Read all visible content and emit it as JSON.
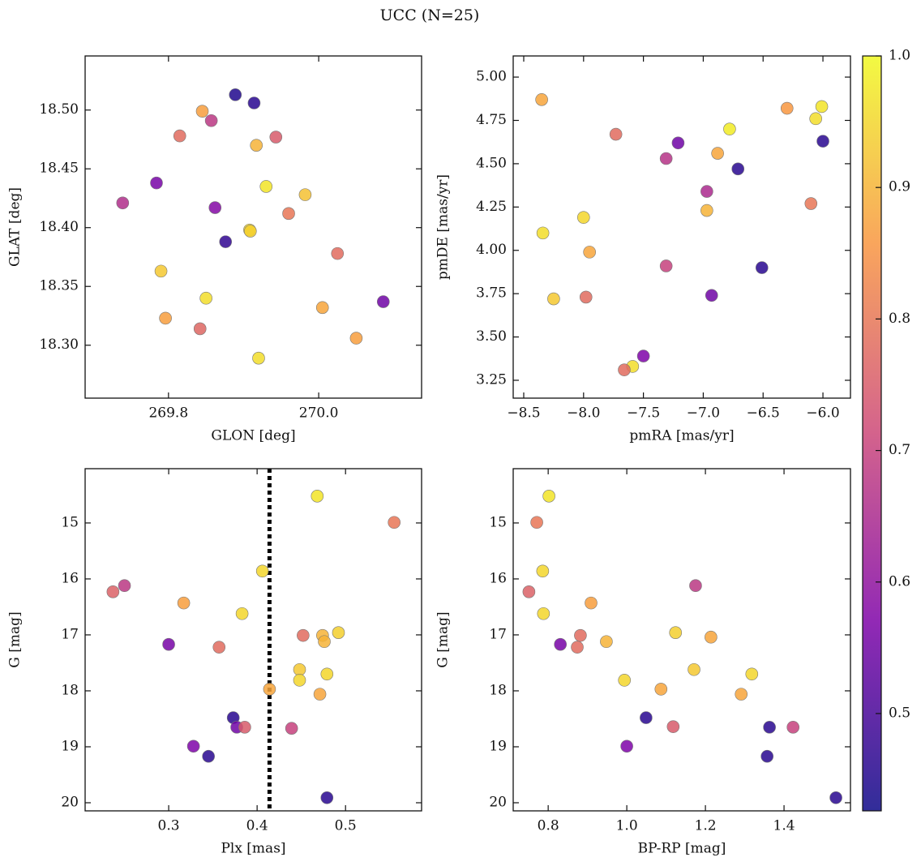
{
  "title": "UCC (N=25)",
  "chart_data": [
    {
      "type": "scatter",
      "xlabel": "GLON [deg]",
      "ylabel": "GLAT [deg]",
      "xlim": [
        269.689,
        270.137
      ],
      "ylim": [
        18.255,
        18.546
      ],
      "xticks": [
        {
          "value": 269.8,
          "label": "269.8"
        },
        {
          "value": 270.0,
          "label": "270.0"
        }
      ],
      "yticks": [
        {
          "value": 18.3,
          "label": "18.30"
        },
        18.35,
        {
          "value": 18.4,
          "label": "18.40"
        },
        18.45,
        {
          "value": 18.5,
          "label": "18.50"
        }
      ],
      "x": [
        269.889,
        269.914,
        269.845,
        269.857,
        269.815,
        269.943,
        269.917,
        269.784,
        269.93,
        269.982,
        269.739,
        269.862,
        269.96,
        269.908,
        269.909,
        269.876,
        270.025,
        269.79,
        270.086,
        269.85,
        270.005,
        269.796,
        269.842,
        270.05,
        269.92
      ],
      "y": [
        18.513,
        18.506,
        18.499,
        18.491,
        18.478,
        18.477,
        18.47,
        18.438,
        18.435,
        18.428,
        18.421,
        18.417,
        18.412,
        18.398,
        18.397,
        18.388,
        18.378,
        18.363,
        18.337,
        18.34,
        18.332,
        18.323,
        18.314,
        18.306,
        18.289
      ],
      "c": [
        0.45,
        0.46,
        0.87,
        0.68,
        0.78,
        0.75,
        0.9,
        0.56,
        0.97,
        0.92,
        0.66,
        0.58,
        0.8,
        0.95,
        0.94,
        0.47,
        0.78,
        0.93,
        0.55,
        0.96,
        0.88,
        0.87,
        0.77,
        0.87,
        0.96
      ]
    },
    {
      "type": "scatter",
      "xlabel": "pmRA [mas/yr]",
      "ylabel": "pmDE [mas/yr]",
      "xlim": [
        -8.588,
        -5.77
      ],
      "ylim": [
        3.147,
        5.122
      ],
      "xticks": [
        {
          "value": -8.5,
          "label": "−8.5"
        },
        {
          "value": -8.0,
          "label": "−8.0"
        },
        {
          "value": -7.5,
          "label": "−7.5"
        },
        {
          "value": -7.0,
          "label": "−7.0"
        },
        {
          "value": -6.5,
          "label": "−6.5"
        },
        {
          "value": -6.0,
          "label": "−6.0"
        }
      ],
      "yticks": [
        3.25,
        {
          "value": 3.5,
          "label": "3.50"
        },
        3.75,
        {
          "value": 4.0,
          "label": "4.00"
        },
        4.25,
        {
          "value": 4.5,
          "label": "4.50"
        },
        4.75,
        {
          "value": 5.0,
          "label": "5.00"
        }
      ],
      "x": [
        -8.35,
        -6.01,
        -6.3,
        -6.06,
        -6.78,
        -7.73,
        -7.21,
        -6.0,
        -6.88,
        -7.31,
        -6.71,
        -6.97,
        -6.97,
        -6.1,
        -8.0,
        -8.34,
        -7.95,
        -7.31,
        -6.51,
        -8.25,
        -7.98,
        -6.93,
        -7.5,
        -7.59,
        -7.66
      ],
      "y": [
        4.87,
        4.83,
        4.82,
        4.76,
        4.7,
        4.67,
        4.62,
        4.63,
        4.56,
        4.53,
        4.47,
        4.34,
        4.23,
        4.27,
        4.19,
        4.1,
        3.99,
        3.91,
        3.9,
        3.72,
        3.73,
        3.74,
        3.39,
        3.33,
        3.31
      ],
      "c": [
        0.88,
        0.97,
        0.86,
        0.96,
        0.98,
        0.78,
        0.55,
        0.46,
        0.88,
        0.67,
        0.46,
        0.65,
        0.9,
        0.8,
        0.95,
        0.96,
        0.88,
        0.7,
        0.46,
        0.93,
        0.78,
        0.55,
        0.57,
        0.96,
        0.78
      ]
    },
    {
      "type": "scatter",
      "xlabel": "Plx [mas]",
      "ylabel": "G [mag]",
      "xlim": [
        0.2055,
        0.586
      ],
      "ylim": [
        20.145,
        14.03
      ],
      "vline": 0.414,
      "xticks": [
        0.3,
        0.4,
        0.5
      ],
      "yticks": [
        15,
        16,
        17,
        18,
        19,
        20
      ],
      "x": [
        0.468,
        0.555,
        0.406,
        0.25,
        0.237,
        0.317,
        0.383,
        0.492,
        0.474,
        0.452,
        0.476,
        0.3,
        0.357,
        0.448,
        0.479,
        0.448,
        0.414,
        0.471,
        0.373,
        0.377,
        0.386,
        0.439,
        0.328,
        0.345,
        0.479
      ],
      "y": [
        14.52,
        14.99,
        15.86,
        16.12,
        16.23,
        16.43,
        16.62,
        16.96,
        17.01,
        17.01,
        17.12,
        17.17,
        17.22,
        17.62,
        17.7,
        17.81,
        17.97,
        18.06,
        18.48,
        18.65,
        18.65,
        18.67,
        18.99,
        19.17,
        19.91
      ],
      "c": [
        0.97,
        0.8,
        0.95,
        0.68,
        0.76,
        0.87,
        0.95,
        0.94,
        0.9,
        0.78,
        0.9,
        0.56,
        0.78,
        0.93,
        0.95,
        0.95,
        0.88,
        0.88,
        0.46,
        0.55,
        0.75,
        0.7,
        0.57,
        0.46,
        0.46
      ]
    },
    {
      "type": "scatter",
      "xlabel": "BP-RP [mag]",
      "ylabel": "G [mag]",
      "xlim": [
        0.711,
        1.569
      ],
      "ylim": [
        20.145,
        14.03
      ],
      "xticks": [
        0.8,
        {
          "value": 1.0,
          "label": "1.0"
        },
        1.2,
        1.4
      ],
      "yticks": [
        15,
        16,
        17,
        18,
        19,
        20
      ],
      "x": [
        0.802,
        0.771,
        0.786,
        1.175,
        0.751,
        0.909,
        0.788,
        1.124,
        1.214,
        0.882,
        0.948,
        0.831,
        0.874,
        1.171,
        1.318,
        0.994,
        1.087,
        1.291,
        1.049,
        1.363,
        1.423,
        1.118,
        1.0,
        1.357,
        1.532
      ],
      "y": [
        14.52,
        14.99,
        15.86,
        16.12,
        16.23,
        16.43,
        16.62,
        16.96,
        17.04,
        17.01,
        17.12,
        17.17,
        17.22,
        17.62,
        17.7,
        17.81,
        17.97,
        18.06,
        18.48,
        18.65,
        18.65,
        18.64,
        18.99,
        19.17,
        19.91
      ],
      "c": [
        0.97,
        0.8,
        0.95,
        0.68,
        0.76,
        0.87,
        0.95,
        0.94,
        0.88,
        0.78,
        0.9,
        0.56,
        0.78,
        0.93,
        0.95,
        0.95,
        0.88,
        0.88,
        0.46,
        0.46,
        0.7,
        0.75,
        0.57,
        0.46,
        0.46
      ]
    },
    {
      "type": "colorbar",
      "cmap": "plasma",
      "clim": [
        0.426,
        1.0
      ],
      "ticks": [
        0.5,
        0.6,
        0.7,
        0.8,
        0.9,
        {
          "value": 1.0,
          "label": "1.0"
        }
      ]
    }
  ]
}
